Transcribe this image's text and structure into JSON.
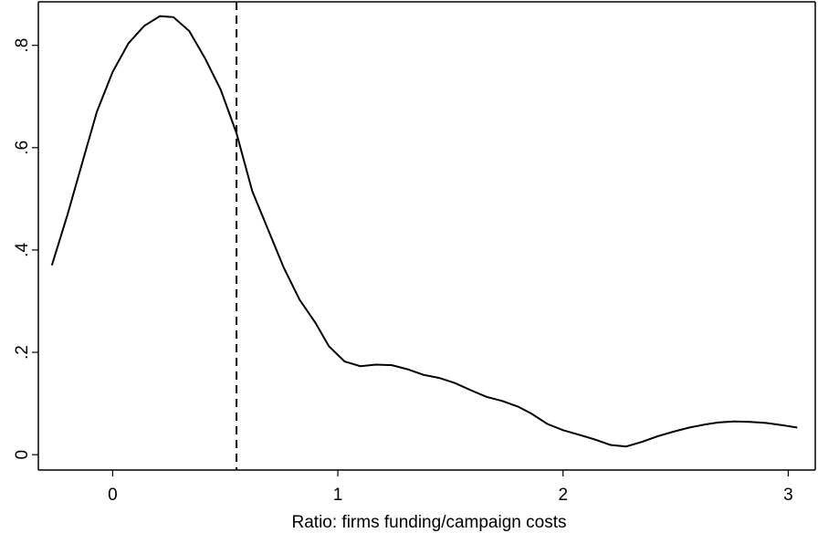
{
  "chart_data": {
    "type": "line",
    "title": "",
    "xlabel": "Ratio: firms funding/campaign costs",
    "ylabel": "",
    "xlim": [
      -0.33,
      3.12
    ],
    "ylim": [
      -0.03,
      0.885
    ],
    "xticks": [
      0,
      1,
      2,
      3
    ],
    "xtick_labels": [
      "0",
      "1",
      "2",
      "3"
    ],
    "yticks": [
      0,
      0.2,
      0.4,
      0.6,
      0.8
    ],
    "ytick_labels": [
      "0",
      ".2",
      ".4",
      ".6",
      ".8"
    ],
    "grid": false,
    "reference_line": {
      "orientation": "vertical",
      "x": 0.55,
      "style": "dashed"
    },
    "series": [
      {
        "x": [
          -0.27,
          -0.2,
          -0.13,
          -0.07,
          0.0,
          0.07,
          0.14,
          0.21,
          0.27,
          0.34,
          0.41,
          0.48,
          0.55,
          0.62,
          0.69,
          0.76,
          0.83,
          0.9,
          0.96,
          1.03,
          1.1,
          1.17,
          1.24,
          1.31,
          1.38,
          1.45,
          1.52,
          1.59,
          1.66,
          1.73,
          1.8,
          1.86,
          1.93,
          2.0,
          2.07,
          2.14,
          2.21,
          2.28,
          2.35,
          2.42,
          2.49,
          2.56,
          2.63,
          2.69,
          2.76,
          2.83,
          2.9,
          2.97,
          3.04
        ],
        "y": [
          0.37,
          0.47,
          0.578,
          0.67,
          0.748,
          0.804,
          0.838,
          0.857,
          0.855,
          0.828,
          0.775,
          0.713,
          0.628,
          0.515,
          0.44,
          0.365,
          0.303,
          0.258,
          0.212,
          0.182,
          0.173,
          0.176,
          0.175,
          0.167,
          0.156,
          0.15,
          0.14,
          0.126,
          0.113,
          0.105,
          0.094,
          0.08,
          0.06,
          0.048,
          0.039,
          0.03,
          0.019,
          0.016,
          0.025,
          0.036,
          0.045,
          0.053,
          0.059,
          0.063,
          0.065,
          0.064,
          0.062,
          0.058,
          0.053
        ]
      }
    ]
  }
}
